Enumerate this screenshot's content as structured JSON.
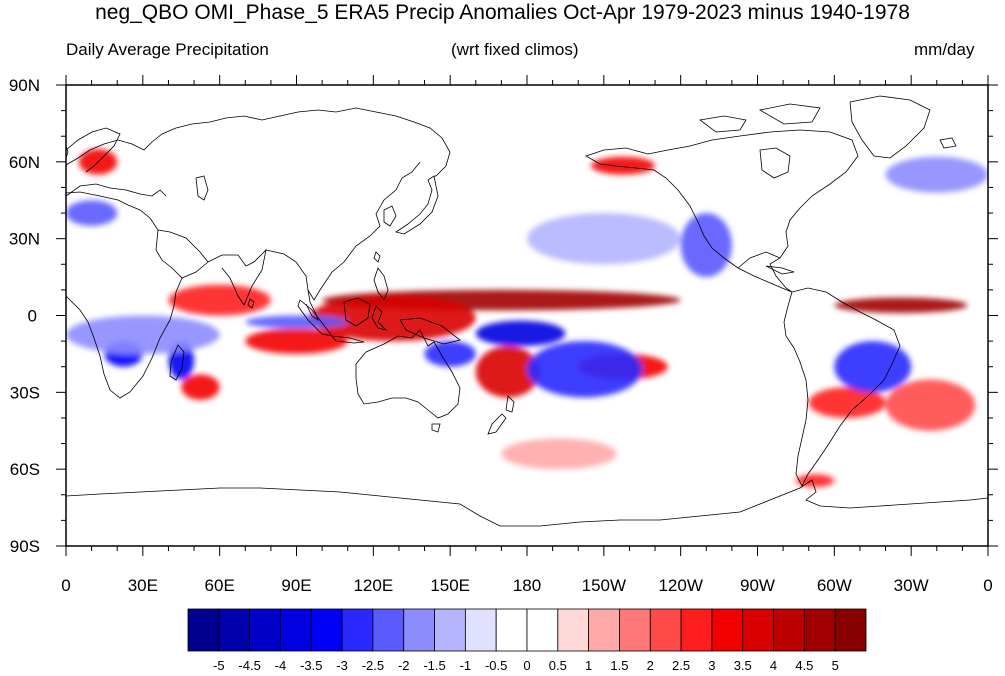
{
  "title": "neg_QBO OMI_Phase_5 ERA5 Precip Anomalies Oct-Apr 1979-2023 minus 1940-1978",
  "subtitle_left": "Daily Average Precipitation",
  "subtitle_center": "(wrt fixed climos)",
  "subtitle_right": "mm/day",
  "map": {
    "projection": "cylindrical-equidistant",
    "lon_range": [
      0,
      360
    ],
    "lat_range": [
      -90,
      90
    ],
    "lon_ticks": [
      {
        "value": 0,
        "label": "0"
      },
      {
        "value": 30,
        "label": "30E"
      },
      {
        "value": 60,
        "label": "60E"
      },
      {
        "value": 90,
        "label": "90E"
      },
      {
        "value": 120,
        "label": "120E"
      },
      {
        "value": 150,
        "label": "150E"
      },
      {
        "value": 180,
        "label": "180"
      },
      {
        "value": 210,
        "label": "150W"
      },
      {
        "value": 240,
        "label": "120W"
      },
      {
        "value": 270,
        "label": "90W"
      },
      {
        "value": 300,
        "label": "60W"
      },
      {
        "value": 330,
        "label": "30W"
      },
      {
        "value": 360,
        "label": "0"
      }
    ],
    "lat_ticks": [
      {
        "value": 90,
        "label": "90N"
      },
      {
        "value": 60,
        "label": "60N"
      },
      {
        "value": 30,
        "label": "30N"
      },
      {
        "value": 0,
        "label": "0"
      },
      {
        "value": -30,
        "label": "30S"
      },
      {
        "value": -60,
        "label": "60S"
      },
      {
        "value": -90,
        "label": "90S"
      }
    ],
    "anomaly_features": [
      {
        "lon": [
          100,
          240
        ],
        "lat": [
          2,
          10
        ],
        "value": 4.5
      },
      {
        "lon": [
          300,
          352
        ],
        "lat": [
          1,
          7
        ],
        "value": 4.5
      },
      {
        "lon": [
          95,
          160
        ],
        "lat": [
          -10,
          8
        ],
        "value": 3.5
      },
      {
        "lon": [
          70,
          110
        ],
        "lat": [
          -15,
          -5
        ],
        "value": 3
      },
      {
        "lon": [
          160,
          185
        ],
        "lat": [
          -32,
          -12
        ],
        "value": 3.5
      },
      {
        "lon": [
          200,
          235
        ],
        "lat": [
          -25,
          -15
        ],
        "value": 3
      },
      {
        "lon": [
          45,
          60
        ],
        "lat": [
          -33,
          -23
        ],
        "value": 3
      },
      {
        "lon": [
          290,
          320
        ],
        "lat": [
          -40,
          -28
        ],
        "value": 2.5
      },
      {
        "lon": [
          40,
          80
        ],
        "lat": [
          0,
          12
        ],
        "value": 2.5
      },
      {
        "lon": [
          170,
          215
        ],
        "lat": [
          -60,
          -48
        ],
        "value": 1
      },
      {
        "lon": [
          320,
          355
        ],
        "lat": [
          -45,
          -25
        ],
        "value": 2
      },
      {
        "lon": [
          5,
          20
        ],
        "lat": [
          55,
          65
        ],
        "value": 3
      },
      {
        "lon": [
          205,
          230
        ],
        "lat": [
          55,
          62
        ],
        "value": 3
      },
      {
        "lon": [
          285,
          300
        ],
        "lat": [
          -67,
          -62
        ],
        "value": 2.5
      },
      {
        "lon": [
          15,
          30
        ],
        "lat": [
          -20,
          -10
        ],
        "value": -3.5
      },
      {
        "lon": [
          40,
          50
        ],
        "lat": [
          -25,
          -10
        ],
        "value": -3.5
      },
      {
        "lon": [
          160,
          195
        ],
        "lat": [
          -12,
          -2
        ],
        "value": -4
      },
      {
        "lon": [
          180,
          225
        ],
        "lat": [
          -32,
          -10
        ],
        "value": -3
      },
      {
        "lon": [
          0,
          20
        ],
        "lat": [
          35,
          45
        ],
        "value": -2.5
      },
      {
        "lon": [
          0,
          60
        ],
        "lat": [
          -15,
          0
        ],
        "value": -2
      },
      {
        "lon": [
          70,
          110
        ],
        "lat": [
          -5,
          0
        ],
        "value": -2.5
      },
      {
        "lon": [
          240,
          260
        ],
        "lat": [
          15,
          40
        ],
        "value": -2.5
      },
      {
        "lon": [
          300,
          330
        ],
        "lat": [
          -30,
          -10
        ],
        "value": -3
      },
      {
        "lon": [
          140,
          160
        ],
        "lat": [
          -20,
          -10
        ],
        "value": -3
      },
      {
        "lon": [
          320,
          360
        ],
        "lat": [
          48,
          62
        ],
        "value": -2
      },
      {
        "lon": [
          180,
          240
        ],
        "lat": [
          20,
          40
        ],
        "value": -1.5
      }
    ]
  },
  "colorbar": {
    "colors": [
      "#00008f",
      "#0000ad",
      "#0000c8",
      "#0000e1",
      "#0000f8",
      "#2828ff",
      "#5a5aff",
      "#8c8cff",
      "#b4b4ff",
      "#e0e0ff",
      "#ffffff",
      "#ffffff",
      "#ffd8d8",
      "#ffa8a8",
      "#ff7878",
      "#ff4a4a",
      "#ff1e1e",
      "#f20000",
      "#d90000",
      "#bd0000",
      "#a10000",
      "#870000"
    ],
    "levels": [
      -5,
      -4.5,
      -4,
      -3.5,
      -3,
      -2.5,
      -2,
      -1.5,
      -1,
      -0.5,
      0,
      0.5,
      1,
      1.5,
      2,
      2.5,
      3,
      3.5,
      4,
      4.5,
      5
    ],
    "level_labels": [
      "-5",
      "-4.5",
      "-4",
      "-3.5",
      "-3",
      "-2.5",
      "-2",
      "-1.5",
      "-1",
      "-0.5",
      "0",
      "0.5",
      "1",
      "1.5",
      "2",
      "2.5",
      "3",
      "3.5",
      "4",
      "4.5",
      "5"
    ]
  }
}
